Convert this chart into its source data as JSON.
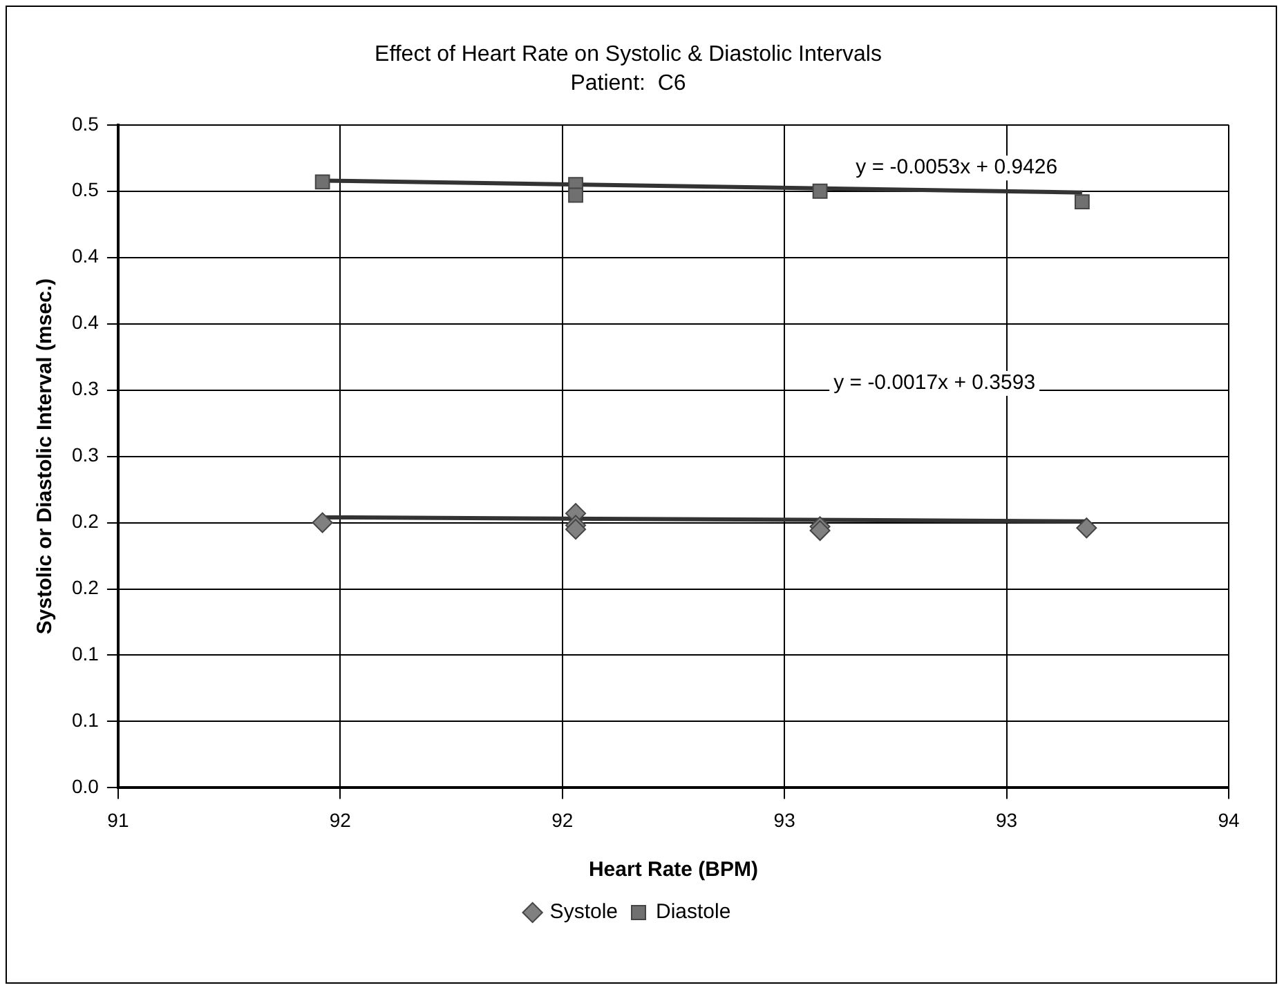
{
  "chart_data": {
    "type": "scatter",
    "title": "Effect of Heart Rate on Systolic & Diastolic Intervals",
    "subtitle": "Patient:  C6",
    "xlabel": "Heart Rate (BPM)",
    "ylabel": "Systolic or Diastolic Interval (msec.)",
    "xlim": [
      91,
      93.5
    ],
    "xticks": [
      91,
      {
        "value": 91.5,
        "label": "92"
      },
      92,
      {
        "value": 92.5,
        "label": "93"
      },
      93,
      {
        "value": 93.5,
        "label": "94"
      }
    ],
    "ylim": [
      0,
      0.5
    ],
    "yticks": [
      {
        "value": 0,
        "label": "0.0"
      },
      {
        "value": 0.05,
        "label": "0.1"
      },
      {
        "value": 0.1,
        "label": "0.1"
      },
      {
        "value": 0.15,
        "label": "0.2"
      },
      {
        "value": 0.2,
        "label": "0.2"
      },
      {
        "value": 0.25,
        "label": "0.3"
      },
      {
        "value": 0.3,
        "label": "0.3"
      },
      {
        "value": 0.35,
        "label": "0.4"
      },
      {
        "value": 0.4,
        "label": "0.4"
      },
      {
        "value": 0.45,
        "label": "0.5"
      },
      {
        "value": 0.5,
        "label": "0.5"
      }
    ],
    "grid": true,
    "legend": "bottom",
    "series": [
      {
        "name": "Systole",
        "color": "#808080",
        "marker": "diamond",
        "x": [
          91.46,
          92.03,
          92.03,
          92.03,
          92.58,
          92.58,
          93.18
        ],
        "values": [
          0.2,
          0.207,
          0.198,
          0.195,
          0.197,
          0.194,
          0.196
        ]
      },
      {
        "name": "Diastole",
        "color": "#707070",
        "marker": "square",
        "x": [
          91.46,
          92.03,
          92.03,
          92.58,
          93.17
        ],
        "values": [
          0.457,
          0.455,
          0.447,
          0.45,
          0.442
        ]
      },
      {
        "type": "line",
        "color": "#333333",
        "marker": "none",
        "x": [
          91.46,
          93.18
        ],
        "values": [
          0.204,
          0.201
        ]
      },
      {
        "type": "line",
        "color": "#333333",
        "marker": "none",
        "x": [
          91.46,
          93.17
        ],
        "values": [
          0.458,
          0.449
        ]
      }
    ],
    "annotations": [
      "y = -0.0053x + 0.9426",
      "y = -0.0017x + 0.3593"
    ]
  }
}
